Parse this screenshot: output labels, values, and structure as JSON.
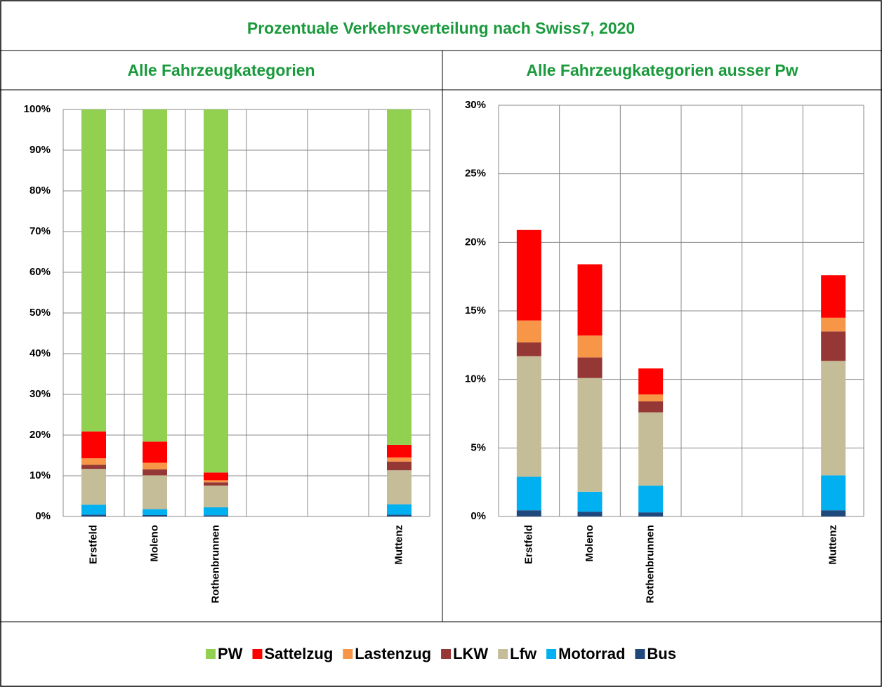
{
  "title": "Prozentuale Verkehrsverteilung nach Swiss7, 2020",
  "chart_data": [
    {
      "type": "stacked_bar",
      "title": "Alle Fahrzeugkategorien",
      "categories": [
        "Erstfeld",
        "Moleno",
        "Rothenbrunnen",
        null,
        null,
        "Muttenz"
      ],
      "series": [
        {
          "name": "Bus",
          "color": "#1f497d",
          "values": [
            0.45,
            0.35,
            0.3,
            null,
            null,
            0.45
          ]
        },
        {
          "name": "Motorrad",
          "color": "#00b0f0",
          "values": [
            2.45,
            1.45,
            1.95,
            null,
            null,
            2.55
          ]
        },
        {
          "name": "Lfw",
          "color": "#c4bd97",
          "values": [
            8.8,
            8.3,
            5.35,
            null,
            null,
            8.35
          ]
        },
        {
          "name": "LKW",
          "color": "#953735",
          "values": [
            1.0,
            1.5,
            0.8,
            null,
            null,
            2.15
          ]
        },
        {
          "name": "Lastenzug",
          "color": "#f79646",
          "values": [
            1.6,
            1.6,
            0.5,
            null,
            null,
            1.0
          ]
        },
        {
          "name": "Sattelzug",
          "color": "#ff0000",
          "values": [
            6.6,
            5.2,
            1.9,
            null,
            null,
            3.1
          ]
        },
        {
          "name": "PW",
          "color": "#92d050",
          "values": [
            79.1,
            81.6,
            89.2,
            null,
            null,
            82.4
          ]
        }
      ],
      "ylim": [
        0,
        100
      ],
      "yticks": [
        {
          "value": 0,
          "label": "0%"
        },
        {
          "value": 10,
          "label": "10%"
        },
        {
          "value": 20,
          "label": "20%"
        },
        {
          "value": 30,
          "label": "30%"
        },
        {
          "value": 40,
          "label": "40%"
        },
        {
          "value": 50,
          "label": "50%"
        },
        {
          "value": 60,
          "label": "60%"
        },
        {
          "value": 70,
          "label": "70%"
        },
        {
          "value": 80,
          "label": "80%"
        },
        {
          "value": 90,
          "label": "90%"
        },
        {
          "value": 100,
          "label": "100%"
        }
      ],
      "grid": true
    },
    {
      "type": "stacked_bar",
      "title": "Alle Fahrzeugkategorien ausser Pw",
      "categories": [
        "Erstfeld",
        "Moleno",
        "Rothenbrunnen",
        null,
        null,
        "Muttenz"
      ],
      "series": [
        {
          "name": "Bus",
          "color": "#1f497d",
          "values": [
            0.45,
            0.35,
            0.3,
            null,
            null,
            0.45
          ]
        },
        {
          "name": "Motorrad",
          "color": "#00b0f0",
          "values": [
            2.45,
            1.45,
            1.95,
            null,
            null,
            2.55
          ]
        },
        {
          "name": "Lfw",
          "color": "#c4bd97",
          "values": [
            8.8,
            8.3,
            5.35,
            null,
            null,
            8.35
          ]
        },
        {
          "name": "LKW",
          "color": "#953735",
          "values": [
            1.0,
            1.5,
            0.8,
            null,
            null,
            2.15
          ]
        },
        {
          "name": "Lastenzug",
          "color": "#f79646",
          "values": [
            1.6,
            1.6,
            0.5,
            null,
            null,
            1.0
          ]
        },
        {
          "name": "Sattelzug",
          "color": "#ff0000",
          "values": [
            6.6,
            5.2,
            1.9,
            null,
            null,
            3.1
          ]
        }
      ],
      "ylim": [
        0,
        30
      ],
      "yticks": [
        {
          "value": 0,
          "label": "0%"
        },
        {
          "value": 5,
          "label": "5%"
        },
        {
          "value": 10,
          "label": "10%"
        },
        {
          "value": 15,
          "label": "15%"
        },
        {
          "value": 20,
          "label": "20%"
        },
        {
          "value": 25,
          "label": "25%"
        },
        {
          "value": 30,
          "label": "30%"
        }
      ],
      "grid": true
    }
  ]
}
